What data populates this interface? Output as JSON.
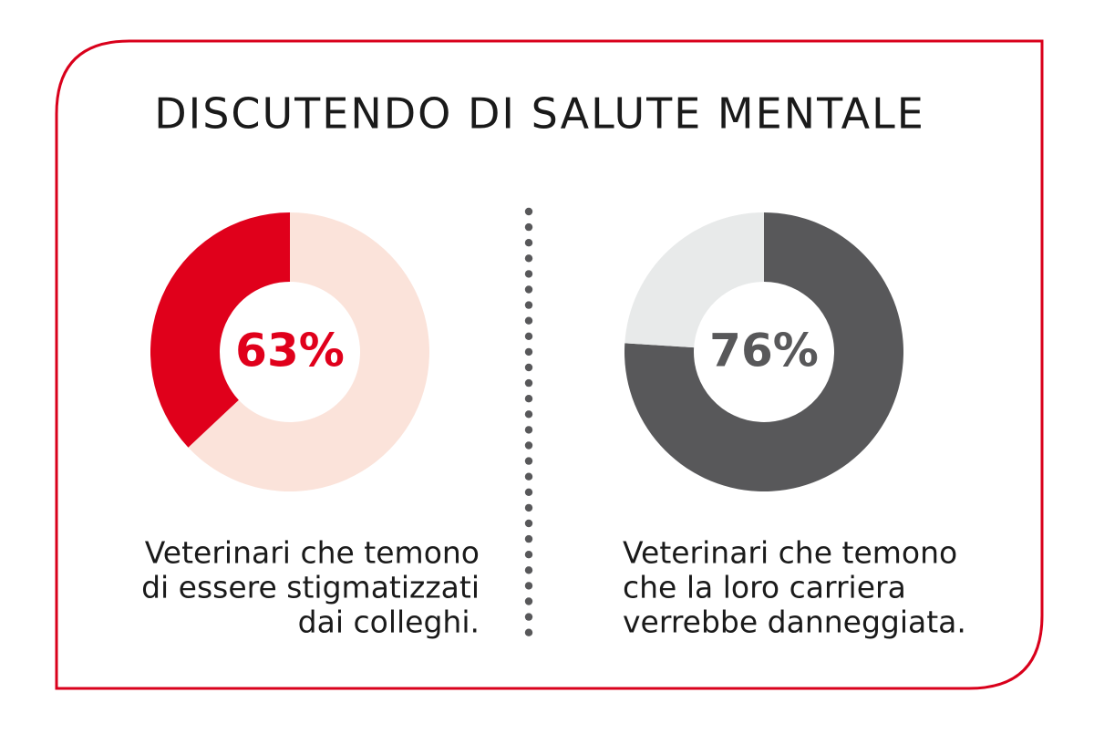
{
  "title": "DISCUTENDO DI SALUTE MENTALE",
  "chart_data": [
    {
      "type": "donut",
      "values": [
        63,
        37
      ],
      "value_labels": [
        "63%",
        null
      ],
      "colors": [
        "#fbe3da",
        "#e0001b"
      ],
      "label_color": "#e0001b",
      "caption": [
        "Veterinari che temono",
        "di essere stigmatizzati",
        "dai colleghi."
      ],
      "caption_align": "right"
    },
    {
      "type": "donut",
      "values": [
        76,
        24
      ],
      "value_labels": [
        "76%",
        null
      ],
      "colors": [
        "#58585a",
        "#e8eaea"
      ],
      "label_color": "#58585a",
      "caption": [
        "Veterinari che temono",
        "che la loro carriera",
        "verrebbe danneggiata."
      ],
      "caption_align": "left"
    }
  ]
}
